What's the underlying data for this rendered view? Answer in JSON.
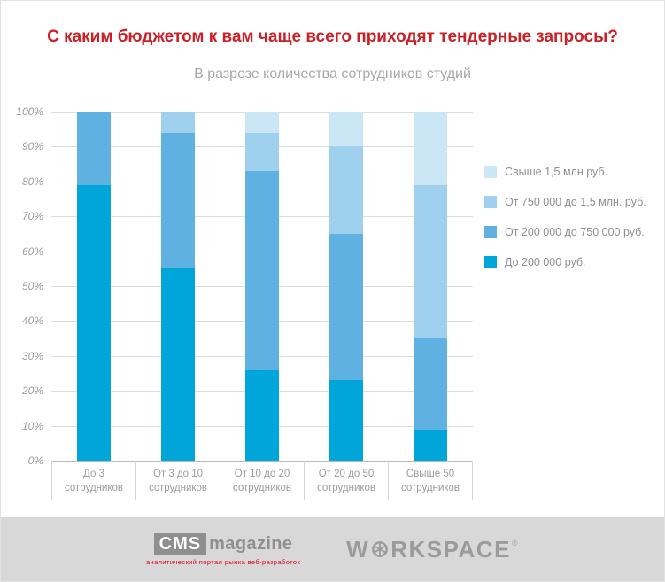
{
  "chart_data": {
    "type": "bar",
    "variant": "stacked-percent-columns",
    "title": "С каким бюджетом к вам чаще всего приходят тендерные запросы?",
    "subtitle": "В разрезе количества сотрудников студий",
    "categories": [
      "До 3 сотрудников",
      "От 3 до 10 сотрудников",
      "От 10 до 20 сотрудников",
      "От 20 до 50 сотрудников",
      "Свыше 50 сотрудников"
    ],
    "series": [
      {
        "name": "До 200 000 руб.",
        "color": "#00a5da",
        "values": [
          79,
          55,
          26,
          23,
          9
        ]
      },
      {
        "name": "От 200 000 до 750 000 руб.",
        "color": "#5fb1e1",
        "values": [
          21,
          39,
          57,
          42,
          26
        ]
      },
      {
        "name": "От 750 000 до 1,5 млн. руб.",
        "color": "#9fd1ee",
        "values": [
          0,
          6,
          11,
          25,
          44
        ]
      },
      {
        "name": "Свыше 1,5 млн руб.",
        "color": "#cbe7f6",
        "values": [
          0,
          0,
          6,
          10,
          21
        ]
      }
    ],
    "yticks": [
      "0%",
      "10%",
      "20%",
      "30%",
      "40%",
      "50%",
      "60%",
      "70%",
      "80%",
      "90%",
      "100%"
    ],
    "ylim": [
      0,
      100
    ],
    "grid": true,
    "legend_position": "right",
    "legend_order_top_to_bottom": [
      "Свыше 1,5 млн руб.",
      "От 750 000 до 1,5 млн. руб.",
      "От 200 000 до 750 000 руб.",
      "До 200 000 руб."
    ]
  },
  "colors": {
    "title": "#cb2026",
    "subtitle": "#a8a8a8",
    "axis_text": "#9c9c9c",
    "grid": "#dcdcdc",
    "axis_baseline": "#b9b9b9",
    "footer_bg": "#d8d8d8"
  },
  "footer": {
    "cms": {
      "box": "CMS",
      "word": "magazine",
      "tagline": "аналитический портал рынка веб-разработок"
    },
    "workspace": {
      "left": "W",
      "right": "RKSPACE",
      "reg": "®"
    }
  }
}
